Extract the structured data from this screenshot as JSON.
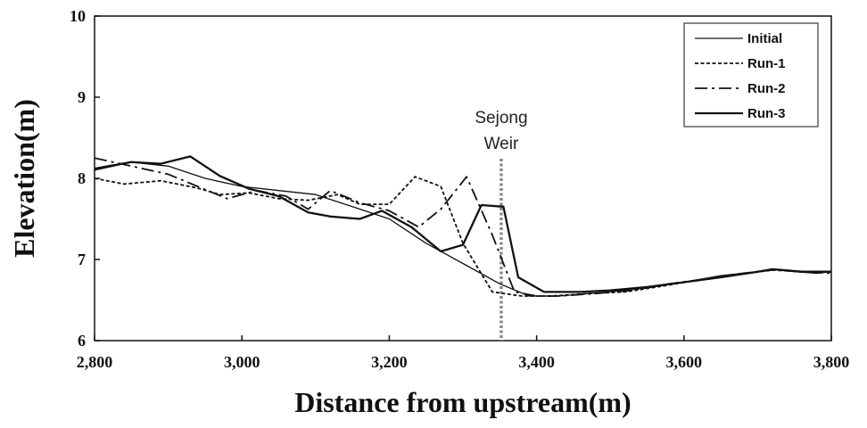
{
  "chart_data": {
    "type": "line",
    "title": "",
    "xlabel": "Distance from upstream(m)",
    "ylabel": "Elevation(m)",
    "xlim": [
      2800,
      3800
    ],
    "ylim": [
      6,
      10
    ],
    "grid": false,
    "legend_position": "top-right",
    "x_ticks": [
      2800,
      3000,
      3200,
      3400,
      3600,
      3800
    ],
    "x_tick_labels": [
      "2,800",
      "3,000",
      "3,200",
      "3,400",
      "3,600",
      "3,800"
    ],
    "y_ticks": [
      6,
      7,
      8,
      9,
      10
    ],
    "y_tick_labels": [
      "6",
      "7",
      "8",
      "9",
      "10"
    ],
    "annotation": {
      "line1": "Sejong",
      "line2": "Weir",
      "x": 3352
    },
    "series": [
      {
        "name": "Initial",
        "style": "solid-thin",
        "x": [
          2800,
          2850,
          2900,
          2950,
          3000,
          3050,
          3100,
          3150,
          3200,
          3250,
          3300,
          3350,
          3390,
          3430,
          3470,
          3500,
          3550,
          3600,
          3650,
          3700,
          3720,
          3750,
          3780,
          3800
        ],
        "y": [
          8.1,
          8.2,
          8.15,
          8.0,
          7.9,
          7.85,
          7.8,
          7.65,
          7.5,
          7.2,
          6.95,
          6.7,
          6.55,
          6.55,
          6.58,
          6.6,
          6.65,
          6.72,
          6.8,
          6.85,
          6.88,
          6.85,
          6.83,
          6.85
        ]
      },
      {
        "name": "Run-1",
        "style": "dotted",
        "x": [
          2800,
          2840,
          2890,
          2940,
          2970,
          3010,
          3050,
          3090,
          3130,
          3160,
          3200,
          3235,
          3270,
          3300,
          3340,
          3380,
          3420,
          3470,
          3520,
          3570,
          3620,
          3680,
          3720,
          3760,
          3800
        ],
        "y": [
          8.0,
          7.93,
          7.97,
          7.88,
          7.8,
          7.82,
          7.75,
          7.73,
          7.8,
          7.68,
          7.68,
          8.02,
          7.9,
          7.2,
          6.6,
          6.55,
          6.55,
          6.58,
          6.6,
          6.67,
          6.75,
          6.82,
          6.87,
          6.85,
          6.85
        ]
      },
      {
        "name": "Run-2",
        "style": "dash-dot",
        "x": [
          2800,
          2850,
          2900,
          2940,
          2980,
          3020,
          3060,
          3090,
          3120,
          3160,
          3200,
          3240,
          3270,
          3305,
          3340,
          3370,
          3400,
          3430,
          3480,
          3530,
          3580,
          3630,
          3680,
          3720,
          3760,
          3800
        ],
        "y": [
          8.25,
          8.15,
          8.05,
          7.9,
          7.75,
          7.85,
          7.78,
          7.62,
          7.85,
          7.7,
          7.6,
          7.4,
          7.62,
          8.02,
          7.3,
          6.6,
          6.55,
          6.55,
          6.58,
          6.62,
          6.7,
          6.76,
          6.83,
          6.87,
          6.85,
          6.83
        ]
      },
      {
        "name": "Run-3",
        "style": "solid-thick",
        "x": [
          2800,
          2850,
          2890,
          2930,
          2970,
          3010,
          3050,
          3090,
          3120,
          3160,
          3190,
          3230,
          3270,
          3300,
          3325,
          3355,
          3375,
          3410,
          3460,
          3500,
          3550,
          3600,
          3650,
          3700,
          3720,
          3760,
          3800
        ],
        "y": [
          8.12,
          8.2,
          8.18,
          8.27,
          8.03,
          7.87,
          7.78,
          7.58,
          7.53,
          7.5,
          7.6,
          7.4,
          7.1,
          7.18,
          7.67,
          7.65,
          6.78,
          6.6,
          6.6,
          6.62,
          6.66,
          6.72,
          6.78,
          6.85,
          6.88,
          6.85,
          6.85
        ]
      }
    ]
  }
}
